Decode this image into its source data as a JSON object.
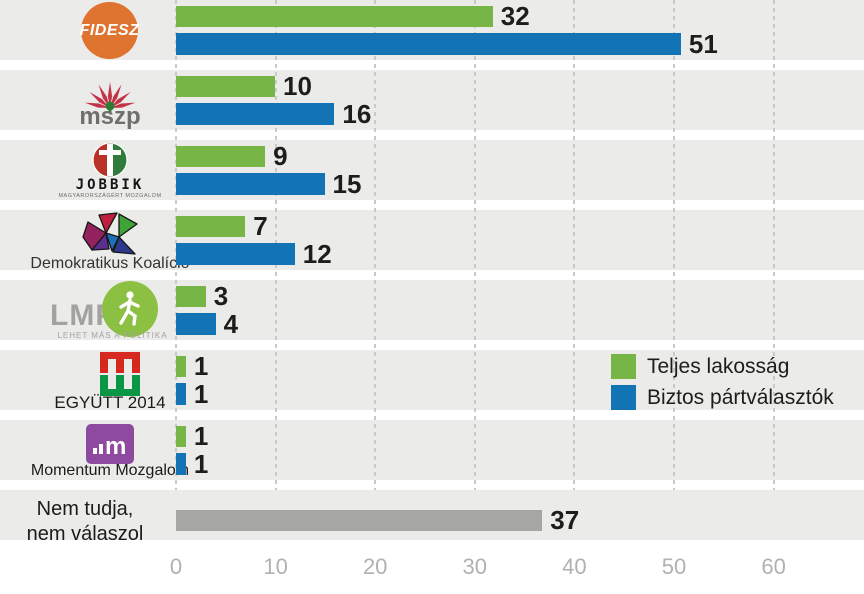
{
  "chart_data": {
    "type": "bar",
    "orientation": "horizontal",
    "title": "",
    "categories": [
      "FIDESZ",
      "MSZP",
      "JOBBIK",
      "Demokratikus Koalíció",
      "LMP",
      "EGYÜTT 2014",
      "Momentum Mozgalom",
      "Nem tudja, nem válaszol"
    ],
    "series": [
      {
        "name": "Teljes lakosság",
        "color": "#77b646",
        "values": [
          32,
          10,
          9,
          7,
          3,
          1,
          1,
          null
        ]
      },
      {
        "name": "Biztos pártválasztók",
        "color": "#1273b5",
        "values": [
          51,
          16,
          15,
          12,
          4,
          1,
          1,
          null
        ]
      },
      {
        "name": "Nem tudja, nem válaszol",
        "color": "#a6a6a5",
        "values": [
          null,
          null,
          null,
          null,
          null,
          null,
          null,
          37
        ]
      }
    ],
    "x_ticks": [
      0,
      10,
      20,
      30,
      40,
      50,
      60
    ],
    "xlim": [
      0,
      69
    ],
    "grid": "dashed-vertical-lines",
    "legend_position": "middle-right"
  },
  "axis": {
    "ticks": [
      "0",
      "10",
      "20",
      "30",
      "40",
      "50",
      "60"
    ]
  },
  "legend": {
    "items": [
      {
        "label": "Teljes lakosság",
        "color": "#77b646"
      },
      {
        "label": "Biztos pártválasztók",
        "color": "#1273b5"
      }
    ]
  },
  "rows": [
    {
      "id": "fidesz",
      "party": "FIDESZ",
      "logo_text": "FIDESZ"
    },
    {
      "id": "mszp",
      "party": "MSZP",
      "logo_text": "mszp"
    },
    {
      "id": "jobbik",
      "party": "JOBBIK",
      "logo_text": "JOBBIK",
      "logo_subtext": "MAGYARORSZÁGÉRT MOZGALOM"
    },
    {
      "id": "dk",
      "party": "Demokratikus Koalíció",
      "caption": "Demokratikus Koalíció"
    },
    {
      "id": "lmp",
      "party": "LMP",
      "logo_text": "LMP",
      "logo_subtext": "LEHET MÁS A POLITIKA"
    },
    {
      "id": "egyutt",
      "party": "EGYÜTT 2014",
      "caption": "EGYÜTT 2014"
    },
    {
      "id": "momentum",
      "party": "Momentum Mozgalom",
      "logo_text": "m",
      "caption": "Momentum Mozgalom"
    },
    {
      "id": "nemtudja",
      "party": "Nem tudja, nem válaszol",
      "caption_line1": "Nem tudja,",
      "caption_line2": "nem válaszol"
    }
  ],
  "colors": {
    "row_band": "#ebebea",
    "gridline": "#c9c9c7",
    "value_label": "#1d1d1b",
    "axis_label": "#b1b1af",
    "fidesz_orange": "#df7430",
    "mszp_red": "#c43247",
    "mszp_green": "#2f7c35",
    "jobbik_red": "#b93229",
    "jobbik_green": "#2e7b3b",
    "lmp_green": "#8cc043",
    "egyutt_red": "#d6281e",
    "egyutt_green": "#0a9644",
    "momentum_purple": "#8d4a9e"
  }
}
